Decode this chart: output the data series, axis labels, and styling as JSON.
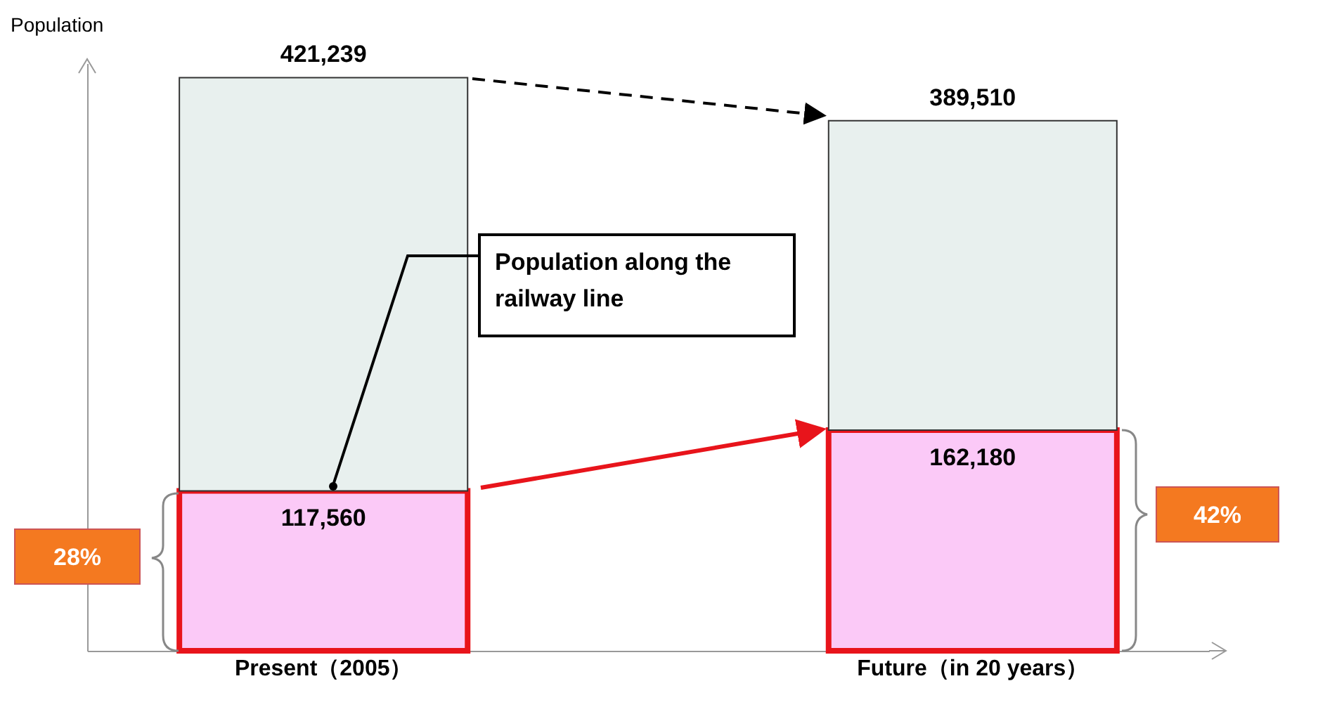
{
  "chart_data": {
    "type": "bar",
    "stacked": true,
    "ylabel": "Population",
    "categories": [
      "Present（2005）",
      "Future（in 20 years）"
    ],
    "series": [
      {
        "color": "#fbc9f7",
        "values": [
          117560,
          162180
        ],
        "value_labels": [
          "117,560",
          "162,180"
        ]
      },
      {
        "color": "#e8f0ee",
        "values": [
          303679,
          227330
        ]
      }
    ],
    "totals": [
      "421,239",
      "389,510"
    ],
    "annotations": [
      "Population along the railway line",
      "28%",
      "42%"
    ],
    "legend": false
  }
}
